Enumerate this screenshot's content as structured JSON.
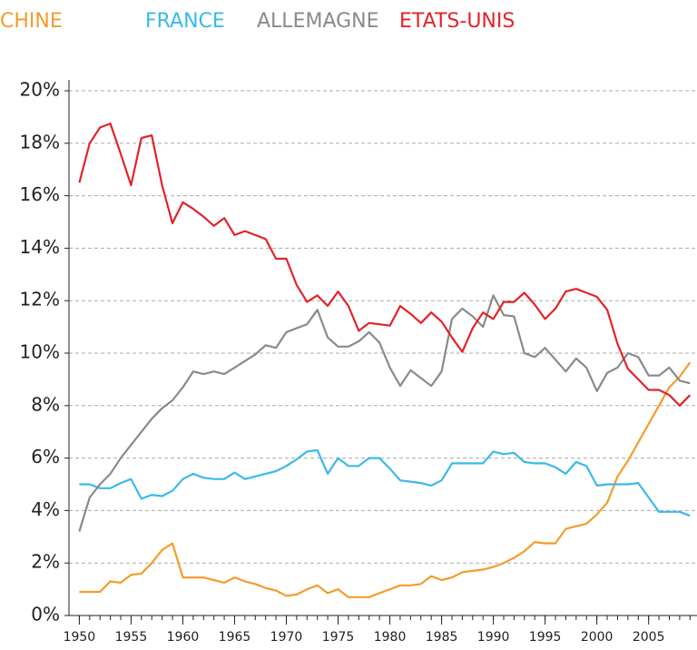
{
  "chart_data": {
    "type": "line",
    "x": [
      1950,
      1951,
      1952,
      1953,
      1954,
      1955,
      1956,
      1957,
      1958,
      1959,
      1960,
      1961,
      1962,
      1963,
      1964,
      1965,
      1966,
      1967,
      1968,
      1969,
      1970,
      1971,
      1972,
      1973,
      1974,
      1975,
      1976,
      1977,
      1978,
      1979,
      1980,
      1981,
      1982,
      1983,
      1984,
      1985,
      1986,
      1987,
      1988,
      1989,
      1990,
      1991,
      1992,
      1993,
      1994,
      1995,
      1996,
      1997,
      1998,
      1999,
      2000,
      2001,
      2002,
      2003,
      2004,
      2005,
      2006,
      2007,
      2008,
      2009
    ],
    "series": [
      {
        "name": "CHINE",
        "color": "#f39c2b",
        "values": [
          0.9,
          0.9,
          0.9,
          1.3,
          1.25,
          1.55,
          1.6,
          2.0,
          2.5,
          2.75,
          1.45,
          1.45,
          1.45,
          1.35,
          1.25,
          1.45,
          1.3,
          1.2,
          1.05,
          0.95,
          0.75,
          0.8,
          1.0,
          1.15,
          0.85,
          1.0,
          0.7,
          0.7,
          0.7,
          0.85,
          1.0,
          1.15,
          1.15,
          1.2,
          1.5,
          1.35,
          1.45,
          1.65,
          1.7,
          1.75,
          1.85,
          2.0,
          2.2,
          2.45,
          2.8,
          2.75,
          2.75,
          3.3,
          3.4,
          3.5,
          3.85,
          4.3,
          5.3,
          5.9,
          6.6,
          7.3,
          8.0,
          8.7,
          9.1,
          9.65
        ]
      },
      {
        "name": "FRANCE",
        "color": "#3cb9e8",
        "values": [
          5.0,
          5.0,
          4.85,
          4.85,
          5.05,
          5.2,
          4.45,
          4.6,
          4.55,
          4.75,
          5.2,
          5.4,
          5.25,
          5.2,
          5.2,
          5.45,
          5.2,
          5.3,
          5.4,
          5.5,
          5.7,
          5.95,
          6.25,
          6.3,
          5.4,
          6.0,
          5.7,
          5.7,
          6.0,
          6.0,
          5.6,
          5.15,
          5.1,
          5.05,
          4.95,
          5.15,
          5.8,
          5.8,
          5.8,
          5.8,
          6.25,
          6.15,
          6.2,
          5.85,
          5.8,
          5.8,
          5.65,
          5.4,
          5.85,
          5.7,
          4.95,
          5.0,
          5.0,
          5.0,
          5.05,
          4.5,
          3.95,
          3.95,
          3.95,
          3.8
        ]
      },
      {
        "name": "ALLEMAGNE",
        "color": "#8a8a8a",
        "values": [
          3.2,
          4.5,
          5.0,
          5.4,
          6.0,
          6.5,
          7.0,
          7.5,
          7.9,
          8.2,
          8.7,
          9.3,
          9.2,
          9.3,
          9.2,
          9.45,
          9.7,
          9.95,
          10.3,
          10.2,
          10.8,
          10.95,
          11.1,
          11.65,
          10.6,
          10.25,
          10.25,
          10.45,
          10.8,
          10.4,
          9.45,
          8.75,
          9.35,
          9.05,
          8.75,
          9.3,
          11.3,
          11.7,
          11.4,
          11.0,
          12.2,
          11.45,
          11.4,
          10.0,
          9.85,
          10.2,
          9.75,
          9.3,
          9.8,
          9.45,
          8.55,
          9.25,
          9.45,
          10.0,
          9.85,
          9.15,
          9.15,
          9.45,
          8.95,
          8.85
        ]
      },
      {
        "name": "ETATS-UNIS",
        "color": "#e2232a",
        "values": [
          16.5,
          18.0,
          18.6,
          18.75,
          17.6,
          16.4,
          18.2,
          18.3,
          16.4,
          14.95,
          15.75,
          15.5,
          15.2,
          14.85,
          15.15,
          14.5,
          14.65,
          14.5,
          14.35,
          13.6,
          13.6,
          12.6,
          11.95,
          12.2,
          11.8,
          12.35,
          11.8,
          10.85,
          11.15,
          11.1,
          11.05,
          11.8,
          11.5,
          11.15,
          11.55,
          11.2,
          10.6,
          10.05,
          10.95,
          11.55,
          11.3,
          11.95,
          11.95,
          12.3,
          11.85,
          11.3,
          11.7,
          12.35,
          12.45,
          12.3,
          12.15,
          11.65,
          10.35,
          9.4,
          9.0,
          8.6,
          8.6,
          8.4,
          8.0,
          8.4
        ]
      }
    ],
    "xlim": [
      1949,
      2009.5
    ],
    "xticks": [
      1950,
      1955,
      1960,
      1965,
      1970,
      1975,
      1980,
      1985,
      1990,
      1995,
      2000,
      2005
    ],
    "ylim": [
      0,
      20
    ],
    "yticks": [
      {
        "value": 0,
        "label": "0%"
      },
      {
        "value": 2,
        "label": "2%"
      },
      {
        "value": 4,
        "label": "4%"
      },
      {
        "value": 6,
        "label": "6%"
      },
      {
        "value": 8,
        "label": "8%"
      },
      {
        "value": 10,
        "label": "10%"
      },
      {
        "value": 12,
        "label": "12%"
      },
      {
        "value": 14,
        "label": "14%"
      },
      {
        "value": 16,
        "label": "16%"
      },
      {
        "value": 18,
        "label": "18%"
      },
      {
        "value": 20,
        "label": "20%"
      }
    ],
    "grid": true
  }
}
